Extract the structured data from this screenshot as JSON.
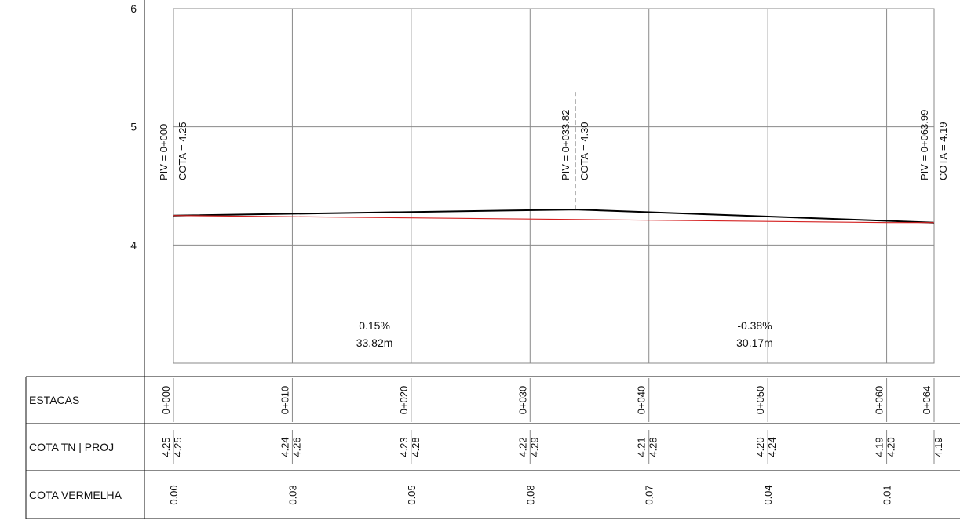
{
  "chart_data": {
    "type": "line",
    "x_range": [
      0,
      63.99
    ],
    "ylim": [
      3,
      6
    ],
    "y_ticks": [
      "6",
      "5",
      "4"
    ],
    "x_grid": [
      0,
      10,
      20,
      30,
      40,
      50,
      60,
      63.99
    ],
    "series": [
      {
        "points": [
          [
            0,
            4.25
          ],
          [
            33.82,
            4.3
          ],
          [
            63.99,
            4.19
          ]
        ],
        "color": "#000000"
      },
      {
        "points": [
          [
            0,
            4.25
          ],
          [
            10,
            4.24
          ],
          [
            20,
            4.23
          ],
          [
            30,
            4.22
          ],
          [
            40,
            4.21
          ],
          [
            50,
            4.2
          ],
          [
            60,
            4.19
          ],
          [
            63.99,
            4.19
          ]
        ],
        "color": "#d42020"
      }
    ],
    "pivs": [
      {
        "x": 0,
        "label": "PIV = 0+000",
        "cota": "COTA =  4.25"
      },
      {
        "x": 33.82,
        "label": "PIV = 0+033.82",
        "cota": "COTA =  4.30"
      },
      {
        "x": 63.99,
        "label": "PIV = 0+063.99",
        "cota": "COTA =  4.19"
      }
    ],
    "grades": [
      {
        "x": 16.91,
        "slope": "0.15%",
        "length": "33.82m"
      },
      {
        "x": 48.9,
        "slope": "-0.38%",
        "length": "30.17m"
      }
    ],
    "table": {
      "row_labels": [
        "ESTACAS",
        "COTA TN | PROJ",
        "COTA VERMELHA"
      ],
      "columns": [
        {
          "x": 0,
          "estaca": "0+000",
          "tn": "4.25",
          "proj": "4.25",
          "vermelha": "0.00"
        },
        {
          "x": 10,
          "estaca": "0+010",
          "tn": "4.24",
          "proj": "4.26",
          "vermelha": "0.03"
        },
        {
          "x": 20,
          "estaca": "0+020",
          "tn": "4.23",
          "proj": "4.28",
          "vermelha": "0.05"
        },
        {
          "x": 30,
          "estaca": "0+030",
          "tn": "4.22",
          "proj": "4.29",
          "vermelha": "0.08"
        },
        {
          "x": 40,
          "estaca": "0+040",
          "tn": "4.21",
          "proj": "4.28",
          "vermelha": "0.07"
        },
        {
          "x": 50,
          "estaca": "0+050",
          "tn": "4.20",
          "proj": "4.24",
          "vermelha": "0.04"
        },
        {
          "x": 60,
          "estaca": "0+060",
          "tn": "4.19",
          "proj": "4.20",
          "vermelha": "0.01"
        },
        {
          "x": 63.99,
          "estaca": "0+064",
          "tn": "",
          "proj": "4.19",
          "vermelha": ""
        }
      ]
    }
  }
}
